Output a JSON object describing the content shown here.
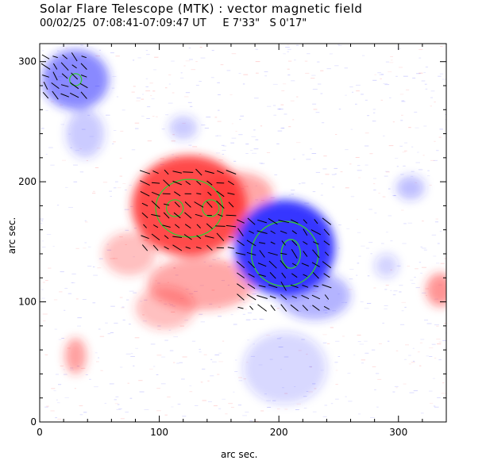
{
  "header": {
    "title": "Solar Flare Telescope (MTK) : vector magnetic field",
    "subtitle": "00/02/25  07:08:41-07:09:47 UT     E 7'33\"   S 0'17\""
  },
  "chart_data": {
    "type": "heatmap",
    "xlabel": "arc sec.",
    "ylabel": "arc sec.",
    "xlim": [
      0,
      340
    ],
    "ylim": [
      0,
      315
    ],
    "xticks": [
      0,
      100,
      200,
      300
    ],
    "yticks": [
      0,
      100,
      200,
      300
    ],
    "colors": {
      "positive": "#ff2a2a",
      "negative": "#2a2aff",
      "contour": "#33cc33",
      "vector": "#000000"
    },
    "regions": [
      {
        "polarity": "negative",
        "cx": 30,
        "cy": 285,
        "rx": 28,
        "ry": 25,
        "strength": 0.55
      },
      {
        "polarity": "negative",
        "cx": 38,
        "cy": 240,
        "rx": 16,
        "ry": 20,
        "strength": 0.25
      },
      {
        "polarity": "positive",
        "cx": 125,
        "cy": 180,
        "rx": 48,
        "ry": 42,
        "strength": 0.85
      },
      {
        "polarity": "positive",
        "cx": 135,
        "cy": 115,
        "rx": 45,
        "ry": 22,
        "strength": 0.4
      },
      {
        "polarity": "positive",
        "cx": 105,
        "cy": 95,
        "rx": 25,
        "ry": 18,
        "strength": 0.3
      },
      {
        "polarity": "positive",
        "cx": 75,
        "cy": 140,
        "rx": 22,
        "ry": 18,
        "strength": 0.3
      },
      {
        "polarity": "positive",
        "cx": 165,
        "cy": 190,
        "rx": 30,
        "ry": 18,
        "strength": 0.4
      },
      {
        "polarity": "positive",
        "cx": 30,
        "cy": 55,
        "rx": 9,
        "ry": 15,
        "strength": 0.45
      },
      {
        "polarity": "positive",
        "cx": 335,
        "cy": 110,
        "rx": 12,
        "ry": 14,
        "strength": 0.5
      },
      {
        "polarity": "negative",
        "cx": 205,
        "cy": 145,
        "rx": 42,
        "ry": 40,
        "strength": 0.95
      },
      {
        "polarity": "negative",
        "cx": 230,
        "cy": 105,
        "rx": 30,
        "ry": 20,
        "strength": 0.35
      },
      {
        "polarity": "negative",
        "cx": 205,
        "cy": 45,
        "rx": 35,
        "ry": 30,
        "strength": 0.18
      },
      {
        "polarity": "negative",
        "cx": 310,
        "cy": 195,
        "rx": 12,
        "ry": 10,
        "strength": 0.3
      },
      {
        "polarity": "negative",
        "cx": 290,
        "cy": 130,
        "rx": 10,
        "ry": 10,
        "strength": 0.2
      },
      {
        "polarity": "negative",
        "cx": 120,
        "cy": 245,
        "rx": 12,
        "ry": 10,
        "strength": 0.25
      }
    ],
    "contours": [
      {
        "cx": 30,
        "cy": 285,
        "rx": 5,
        "ry": 5
      },
      {
        "cx": 125,
        "cy": 178,
        "rx": 28,
        "ry": 24
      },
      {
        "cx": 113,
        "cy": 178,
        "rx": 7,
        "ry": 7
      },
      {
        "cx": 143,
        "cy": 178,
        "rx": 7,
        "ry": 7
      },
      {
        "cx": 205,
        "cy": 140,
        "rx": 28,
        "ry": 27
      },
      {
        "cx": 210,
        "cy": 140,
        "rx": 8,
        "ry": 12
      }
    ],
    "vector_groups": [
      {
        "x0": 5,
        "x1": 42,
        "y0": 272,
        "y1": 306,
        "step": 8,
        "angle": 40
      },
      {
        "x0": 88,
        "x1": 165,
        "y0": 145,
        "y1": 210,
        "step": 9,
        "angle": 25
      },
      {
        "x0": 168,
        "x1": 240,
        "y0": 95,
        "y1": 175,
        "step": 9,
        "angle": 35
      }
    ]
  }
}
